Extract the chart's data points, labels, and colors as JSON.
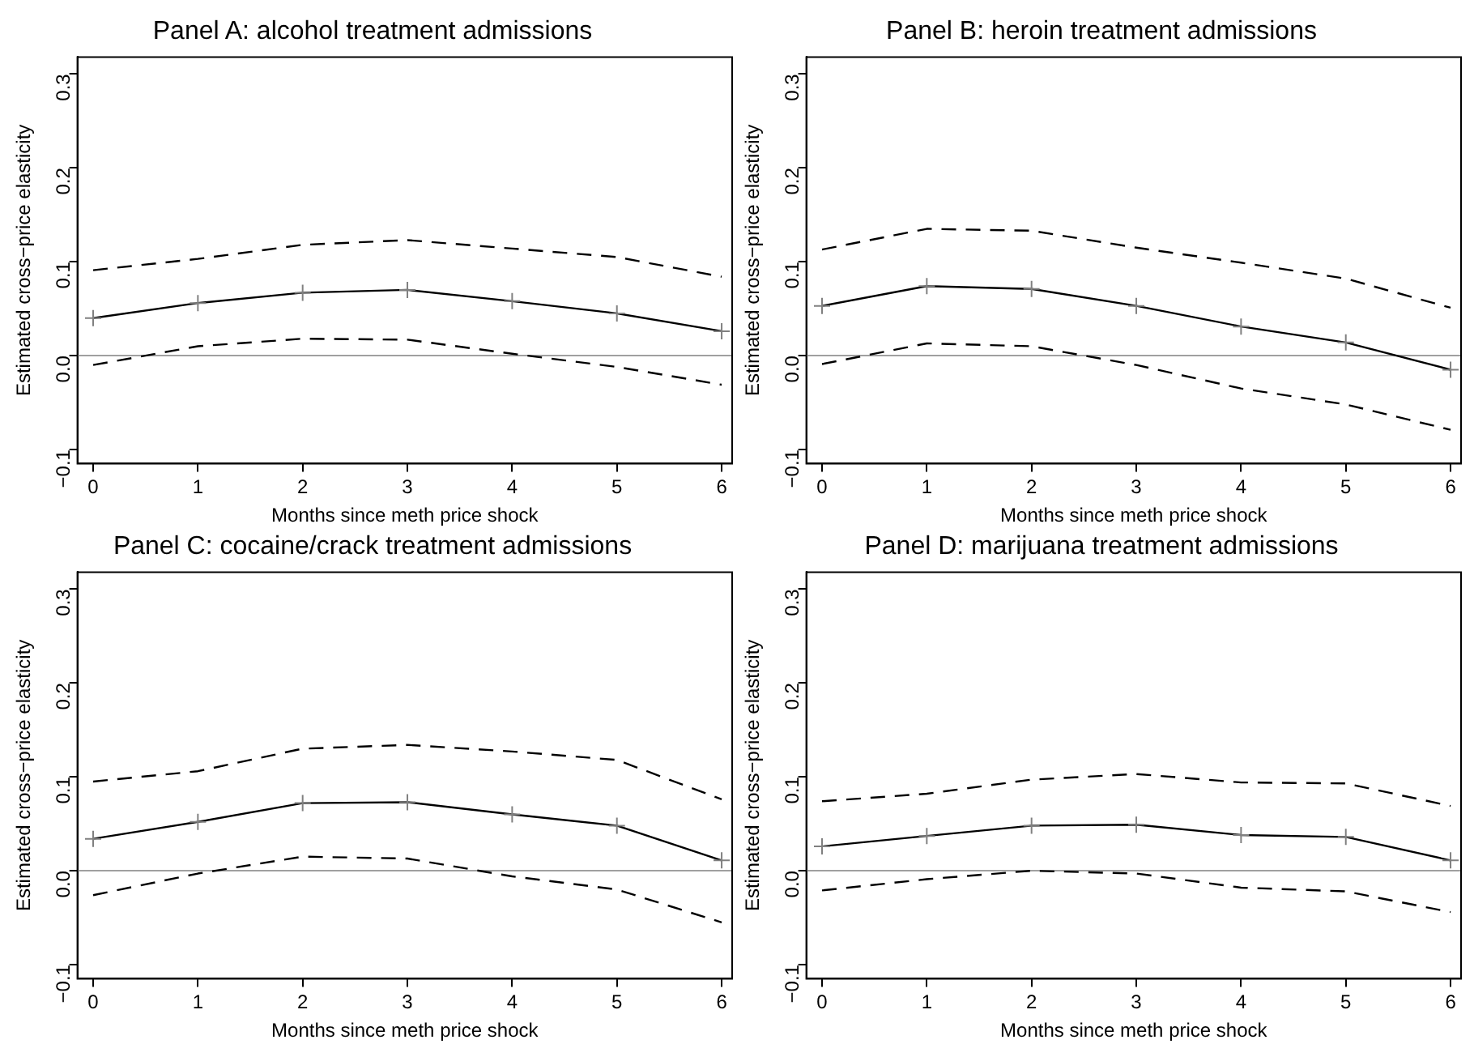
{
  "chart_data": [
    {
      "type": "line",
      "title": "Panel A: alcohol treatment admissions",
      "xlabel": "Months since meth price shock",
      "ylabel": "Estimated cross−price elasticity",
      "x": [
        0,
        1,
        2,
        3,
        4,
        5,
        6
      ],
      "xlim": [
        -0.15,
        6.1
      ],
      "xticks": [
        0,
        1,
        2,
        3,
        4,
        5,
        6
      ],
      "ylim": [
        -0.115,
        0.318
      ],
      "yticks": [
        {
          "value": -0.1,
          "label": "−0.1"
        },
        {
          "value": 0,
          "label": "0.0"
        },
        {
          "value": 0.1,
          "label": "0.1"
        },
        {
          "value": 0.2,
          "label": "0.2"
        },
        {
          "value": 0.3,
          "label": "0.3"
        }
      ],
      "grid": false,
      "legend": false,
      "ref_lines": [
        {
          "axis": "y",
          "value": 0,
          "color": "#a0a0a0",
          "line_style": "solid"
        }
      ],
      "series": [
        {
          "color": "#000000",
          "line_style": "solid",
          "marker": "cross",
          "values": [
            0.04,
            0.056,
            0.067,
            0.07,
            0.058,
            0.045,
            0.026
          ]
        },
        {
          "color": "#000000",
          "line_style": "dashed",
          "marker": "none",
          "values": [
            0.091,
            0.103,
            0.118,
            0.123,
            0.114,
            0.105,
            0.084
          ]
        },
        {
          "color": "#000000",
          "line_style": "dashed",
          "marker": "none",
          "values": [
            -0.01,
            0.01,
            0.018,
            0.017,
            0.002,
            -0.012,
            -0.031
          ]
        }
      ]
    },
    {
      "type": "line",
      "title": "Panel B: heroin treatment admissions",
      "xlabel": "Months since meth price shock",
      "ylabel": "Estimated cross−price elasticity",
      "x": [
        0,
        1,
        2,
        3,
        4,
        5,
        6
      ],
      "xlim": [
        -0.15,
        6.1
      ],
      "xticks": [
        0,
        1,
        2,
        3,
        4,
        5,
        6
      ],
      "ylim": [
        -0.115,
        0.318
      ],
      "yticks": [
        {
          "value": -0.1,
          "label": "−0.1"
        },
        {
          "value": 0,
          "label": "0.0"
        },
        {
          "value": 0.1,
          "label": "0.1"
        },
        {
          "value": 0.2,
          "label": "0.2"
        },
        {
          "value": 0.3,
          "label": "0.3"
        }
      ],
      "grid": false,
      "legend": false,
      "ref_lines": [
        {
          "axis": "y",
          "value": 0,
          "color": "#a0a0a0",
          "line_style": "solid"
        }
      ],
      "series": [
        {
          "color": "#000000",
          "line_style": "solid",
          "marker": "cross",
          "values": [
            0.053,
            0.074,
            0.071,
            0.053,
            0.031,
            0.014,
            -0.015
          ]
        },
        {
          "color": "#000000",
          "line_style": "dashed",
          "marker": "none",
          "values": [
            0.113,
            0.135,
            0.133,
            0.115,
            0.099,
            0.082,
            0.051
          ]
        },
        {
          "color": "#000000",
          "line_style": "dashed",
          "marker": "none",
          "values": [
            -0.009,
            0.013,
            0.01,
            -0.01,
            -0.035,
            -0.052,
            -0.079
          ]
        }
      ]
    },
    {
      "type": "line",
      "title": "Panel C: cocaine/crack treatment admissions",
      "xlabel": "Months since meth price shock",
      "ylabel": "Estimated cross−price elasticity",
      "x": [
        0,
        1,
        2,
        3,
        4,
        5,
        6
      ],
      "xlim": [
        -0.15,
        6.1
      ],
      "xticks": [
        0,
        1,
        2,
        3,
        4,
        5,
        6
      ],
      "ylim": [
        -0.115,
        0.318
      ],
      "yticks": [
        {
          "value": -0.1,
          "label": "−0.1"
        },
        {
          "value": 0,
          "label": "0.0"
        },
        {
          "value": 0.1,
          "label": "0.1"
        },
        {
          "value": 0.2,
          "label": "0.2"
        },
        {
          "value": 0.3,
          "label": "0.3"
        }
      ],
      "grid": false,
      "legend": false,
      "ref_lines": [
        {
          "axis": "y",
          "value": 0,
          "color": "#a0a0a0",
          "line_style": "solid"
        }
      ],
      "series": [
        {
          "color": "#000000",
          "line_style": "solid",
          "marker": "cross",
          "values": [
            0.034,
            0.052,
            0.072,
            0.073,
            0.06,
            0.048,
            0.011
          ]
        },
        {
          "color": "#000000",
          "line_style": "dashed",
          "marker": "none",
          "values": [
            0.095,
            0.106,
            0.13,
            0.134,
            0.127,
            0.118,
            0.076
          ]
        },
        {
          "color": "#000000",
          "line_style": "dashed",
          "marker": "none",
          "values": [
            -0.026,
            -0.003,
            0.015,
            0.013,
            -0.006,
            -0.02,
            -0.055
          ]
        }
      ]
    },
    {
      "type": "line",
      "title": "Panel D: marijuana treatment admissions",
      "xlabel": "Months since meth price shock",
      "ylabel": "Estimated cross−price elasticity",
      "x": [
        0,
        1,
        2,
        3,
        4,
        5,
        6
      ],
      "xlim": [
        -0.15,
        6.1
      ],
      "xticks": [
        0,
        1,
        2,
        3,
        4,
        5,
        6
      ],
      "ylim": [
        -0.115,
        0.318
      ],
      "yticks": [
        {
          "value": -0.1,
          "label": "−0.1"
        },
        {
          "value": 0,
          "label": "0.0"
        },
        {
          "value": 0.1,
          "label": "0.1"
        },
        {
          "value": 0.2,
          "label": "0.2"
        },
        {
          "value": 0.3,
          "label": "0.3"
        }
      ],
      "grid": false,
      "legend": false,
      "ref_lines": [
        {
          "axis": "y",
          "value": 0,
          "color": "#a0a0a0",
          "line_style": "solid"
        }
      ],
      "series": [
        {
          "color": "#000000",
          "line_style": "solid",
          "marker": "cross",
          "values": [
            0.026,
            0.037,
            0.048,
            0.049,
            0.038,
            0.036,
            0.011
          ]
        },
        {
          "color": "#000000",
          "line_style": "dashed",
          "marker": "none",
          "values": [
            0.074,
            0.082,
            0.097,
            0.103,
            0.094,
            0.093,
            0.069
          ]
        },
        {
          "color": "#000000",
          "line_style": "dashed",
          "marker": "none",
          "values": [
            -0.021,
            -0.009,
            0.0,
            -0.003,
            -0.018,
            -0.022,
            -0.044
          ]
        }
      ]
    }
  ]
}
